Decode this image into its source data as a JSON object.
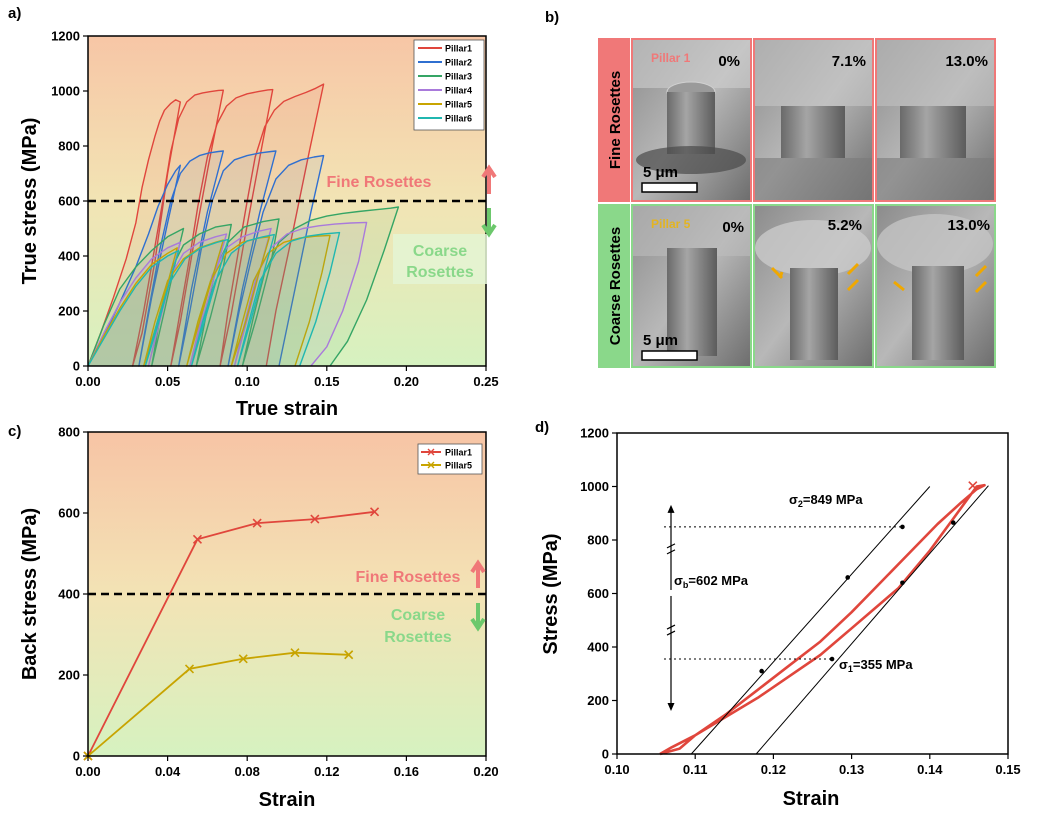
{
  "colors": {
    "fine": "#f07878",
    "coarse": "#8ad88a",
    "pillar1": "#e0463c",
    "pillar2": "#2f6fd0",
    "pillar3": "#35a565",
    "pillar4": "#a97adb",
    "pillar5": "#c8a400",
    "pillar6": "#20b7b0",
    "boundary": "#000000"
  },
  "panel_b": {
    "label": "b)",
    "rows": [
      {
        "name": "Fine Rosettes",
        "pillar": "Pillar 1",
        "strains": [
          "0%",
          "7.1%",
          "13.0%"
        ],
        "scale_bar": "5 μm"
      },
      {
        "name": "Coarse Rosettes",
        "pillar": "Pillar 5",
        "strains": [
          "0%",
          "5.2%",
          "13.0%"
        ],
        "scale_bar": "5 μm"
      }
    ]
  },
  "chart_data": [
    {
      "panel": "a)",
      "type": "line",
      "title": "",
      "xlabel": "True strain",
      "ylabel": "True stress (MPa)",
      "xlim": [
        0,
        0.25
      ],
      "ylim": [
        0,
        1200
      ],
      "xticks": [
        "0.00",
        "0.05",
        "0.10",
        "0.15",
        "0.20",
        "0.25"
      ],
      "yticks": [
        "0",
        "200",
        "400",
        "600",
        "800",
        "1000",
        "1200"
      ],
      "legend_position": "top-right",
      "threshold": 600,
      "annotations": {
        "upper": "Fine Rosettes",
        "lower_1": "Coarse",
        "lower_2": "Rosettes"
      },
      "series": [
        {
          "name": "Pillar1",
          "color_key": "pillar1",
          "x": [
            0,
            0.008,
            0.016,
            0.024,
            0.03,
            0.034,
            0.038,
            0.042,
            0.045,
            0.048,
            0.052,
            0.055,
            0.058,
            0.05,
            0.042,
            0.034,
            0.028,
            0.035,
            0.041,
            0.047,
            0.052,
            0.057,
            0.062,
            0.067,
            0.072,
            0.077,
            0.082,
            0.085,
            0.076,
            0.066,
            0.058,
            0.052,
            0.058,
            0.064,
            0.069,
            0.075,
            0.081,
            0.087,
            0.093,
            0.1,
            0.107,
            0.113,
            0.116,
            0.108,
            0.098,
            0.09,
            0.083,
            0.088,
            0.094,
            0.1,
            0.105,
            0.111,
            0.117,
            0.123,
            0.13,
            0.137,
            0.143,
            0.148,
            0.139,
            0.128,
            0.118,
            0.112
          ],
          "y": [
            0,
            120,
            250,
            390,
            520,
            650,
            750,
            835,
            890,
            930,
            955,
            968,
            960,
            700,
            380,
            120,
            0,
            200,
            400,
            600,
            780,
            900,
            960,
            985,
            993,
            998,
            1002,
            1003,
            740,
            430,
            160,
            0,
            200,
            400,
            580,
            760,
            880,
            945,
            975,
            990,
            998,
            1004,
            1005,
            760,
            450,
            190,
            0,
            200,
            400,
            600,
            760,
            870,
            930,
            962,
            980,
            995,
            1010,
            1025,
            780,
            470,
            200,
            0
          ]
        },
        {
          "name": "Pillar2",
          "color_key": "pillar2",
          "x": [
            0,
            0.01,
            0.02,
            0.03,
            0.038,
            0.044,
            0.05,
            0.055,
            0.058,
            0.05,
            0.04,
            0.032,
            0.038,
            0.045,
            0.052,
            0.058,
            0.064,
            0.07,
            0.076,
            0.082,
            0.085,
            0.075,
            0.065,
            0.057,
            0.064,
            0.071,
            0.078,
            0.085,
            0.092,
            0.1,
            0.108,
            0.115,
            0.118,
            0.108,
            0.097,
            0.088,
            0.095,
            0.103,
            0.11,
            0.118,
            0.126,
            0.134,
            0.142,
            0.148,
            0.14,
            0.13,
            0.12
          ],
          "y": [
            0,
            110,
            230,
            360,
            480,
            580,
            660,
            710,
            730,
            520,
            250,
            0,
            200,
            420,
            600,
            700,
            745,
            765,
            775,
            780,
            782,
            560,
            280,
            0,
            200,
            420,
            600,
            710,
            750,
            765,
            775,
            780,
            782,
            560,
            280,
            0,
            200,
            400,
            560,
            680,
            730,
            750,
            760,
            765,
            560,
            280,
            0
          ]
        },
        {
          "name": "Pillar3",
          "color_key": "pillar3",
          "x": [
            0,
            0.01,
            0.02,
            0.03,
            0.04,
            0.05,
            0.06,
            0.055,
            0.048,
            0.04,
            0.046,
            0.053,
            0.06,
            0.07,
            0.08,
            0.09,
            0.085,
            0.077,
            0.068,
            0.074,
            0.08,
            0.088,
            0.098,
            0.11,
            0.12,
            0.115,
            0.106,
            0.097,
            0.104,
            0.111,
            0.12,
            0.13,
            0.14,
            0.15,
            0.16,
            0.17,
            0.18,
            0.19,
            0.195,
            0.186,
            0.175,
            0.163,
            0.152
          ],
          "y": [
            0,
            150,
            280,
            360,
            420,
            470,
            500,
            380,
            200,
            0,
            200,
            360,
            440,
            480,
            505,
            515,
            360,
            180,
            0,
            180,
            350,
            450,
            505,
            525,
            535,
            380,
            180,
            0,
            180,
            340,
            450,
            500,
            530,
            545,
            555,
            562,
            568,
            574,
            578,
            420,
            240,
            90,
            0
          ]
        },
        {
          "name": "Pillar4",
          "color_key": "pillar4",
          "x": [
            0,
            0.01,
            0.02,
            0.03,
            0.04,
            0.05,
            0.058,
            0.052,
            0.045,
            0.038,
            0.045,
            0.052,
            0.06,
            0.07,
            0.08,
            0.087,
            0.08,
            0.072,
            0.064,
            0.071,
            0.078,
            0.087,
            0.097,
            0.107,
            0.115,
            0.108,
            0.1,
            0.092,
            0.099,
            0.106,
            0.115,
            0.125,
            0.135,
            0.145,
            0.155,
            0.165,
            0.175,
            0.17,
            0.16,
            0.15,
            0.14
          ],
          "y": [
            0,
            120,
            230,
            320,
            390,
            430,
            450,
            320,
            160,
            0,
            170,
            330,
            410,
            450,
            470,
            480,
            340,
            170,
            0,
            170,
            330,
            430,
            470,
            490,
            500,
            350,
            170,
            0,
            170,
            330,
            430,
            480,
            500,
            510,
            516,
            520,
            522,
            380,
            200,
            70,
            0
          ]
        },
        {
          "name": "Pillar5",
          "color_key": "pillar5",
          "x": [
            0,
            0.01,
            0.02,
            0.03,
            0.04,
            0.05,
            0.056,
            0.05,
            0.043,
            0.035,
            0.042,
            0.05,
            0.06,
            0.07,
            0.08,
            0.085,
            0.078,
            0.07,
            0.062,
            0.069,
            0.077,
            0.087,
            0.097,
            0.107,
            0.114,
            0.107,
            0.099,
            0.09,
            0.097,
            0.104,
            0.113,
            0.123,
            0.133,
            0.143,
            0.152,
            0.147,
            0.139,
            0.13
          ],
          "y": [
            0,
            110,
            210,
            300,
            370,
            410,
            430,
            300,
            150,
            0,
            160,
            310,
            390,
            430,
            450,
            458,
            320,
            160,
            0,
            160,
            310,
            410,
            450,
            465,
            470,
            330,
            160,
            0,
            160,
            310,
            410,
            450,
            465,
            472,
            475,
            340,
            160,
            0
          ]
        },
        {
          "name": "Pillar6",
          "color_key": "pillar6",
          "x": [
            0,
            0.01,
            0.02,
            0.03,
            0.04,
            0.05,
            0.057,
            0.051,
            0.044,
            0.036,
            0.043,
            0.051,
            0.061,
            0.071,
            0.081,
            0.088,
            0.081,
            0.073,
            0.065,
            0.072,
            0.08,
            0.09,
            0.1,
            0.11,
            0.117,
            0.11,
            0.102,
            0.094,
            0.101,
            0.108,
            0.118,
            0.128,
            0.138,
            0.148,
            0.158,
            0.152,
            0.143,
            0.133
          ],
          "y": [
            0,
            100,
            200,
            290,
            360,
            400,
            420,
            300,
            150,
            0,
            150,
            300,
            390,
            430,
            450,
            460,
            320,
            160,
            0,
            160,
            310,
            410,
            455,
            470,
            478,
            330,
            160,
            0,
            160,
            310,
            410,
            455,
            472,
            480,
            485,
            340,
            160,
            0
          ]
        }
      ]
    },
    {
      "panel": "c)",
      "type": "line",
      "title": "",
      "xlabel": "Strain",
      "ylabel": "Back stress (MPa)",
      "xlim": [
        0,
        0.2
      ],
      "ylim": [
        0,
        800
      ],
      "xticks": [
        "0.00",
        "0.04",
        "0.08",
        "0.12",
        "0.16",
        "0.20"
      ],
      "yticks": [
        "0",
        "200",
        "400",
        "600",
        "800"
      ],
      "legend_position": "top-right",
      "threshold": 400,
      "annotations": {
        "upper": "Fine Rosettes",
        "lower_1": "Coarse",
        "lower_2": "Rosettes"
      },
      "series": [
        {
          "name": "Pillar1",
          "color_key": "pillar1",
          "x": [
            0,
            0.055,
            0.085,
            0.114,
            0.144
          ],
          "y": [
            0,
            535,
            575,
            585,
            603
          ]
        },
        {
          "name": "Pillar5",
          "color_key": "pillar5",
          "x": [
            0,
            0.051,
            0.078,
            0.104,
            0.131
          ],
          "y": [
            0,
            215,
            240,
            255,
            250
          ]
        }
      ]
    },
    {
      "panel": "d)",
      "type": "line",
      "title": "",
      "xlabel": "Strain",
      "ylabel": "Stress (MPa)",
      "xlim": [
        0.1,
        0.15
      ],
      "ylim": [
        0,
        1200
      ],
      "xticks": [
        "0.10",
        "0.11",
        "0.12",
        "0.13",
        "0.14",
        "0.15"
      ],
      "yticks": [
        "0",
        "200",
        "400",
        "600",
        "800",
        "1000",
        "1200"
      ],
      "annotations": {
        "sigma2_main": "σ",
        "sigma2_sub": "2",
        "sigma2_value": "=849 MPa",
        "sigmab_main": "σ",
        "sigmab_sub": "b",
        "sigmab_value": "=602 MPa",
        "sigma1_main": "σ",
        "sigma1_sub": "1",
        "sigma1_value": "=355 MPa"
      },
      "levels": {
        "sigma2": 849,
        "sigma1": 355
      },
      "series": [
        {
          "name": "loop",
          "color_key": "pillar1",
          "x": [
            0.1055,
            0.108,
            0.11,
            0.114,
            0.118,
            0.122,
            0.126,
            0.13,
            0.134,
            0.138,
            0.141,
            0.144,
            0.146,
            0.147,
            0.146,
            0.143,
            0.14,
            0.136,
            0.13,
            0.126,
            0.122,
            0.118,
            0.114,
            0.11,
            0.107,
            0.1055
          ],
          "y": [
            0,
            20,
            70,
            150,
            240,
            330,
            420,
            530,
            650,
            770,
            860,
            940,
            990,
            1005,
            1000,
            880,
            760,
            620,
            470,
            370,
            290,
            210,
            140,
            70,
            25,
            0
          ]
        },
        {
          "name": "fit1",
          "color_key": "boundary",
          "x": [
            0.1095,
            0.14
          ],
          "y": [
            0,
            1000
          ]
        },
        {
          "name": "fit2",
          "color_key": "boundary",
          "x": [
            0.1178,
            0.1475
          ],
          "y": [
            0,
            1003
          ]
        },
        {
          "name": "markers_up",
          "color_key": "boundary",
          "x": [
            0.1185,
            0.1295,
            0.1365
          ],
          "y": [
            310,
            660,
            849
          ]
        },
        {
          "name": "markers_down",
          "color_key": "boundary",
          "x": [
            0.1275,
            0.1365,
            0.143
          ],
          "y": [
            355,
            640,
            865
          ]
        }
      ]
    }
  ]
}
